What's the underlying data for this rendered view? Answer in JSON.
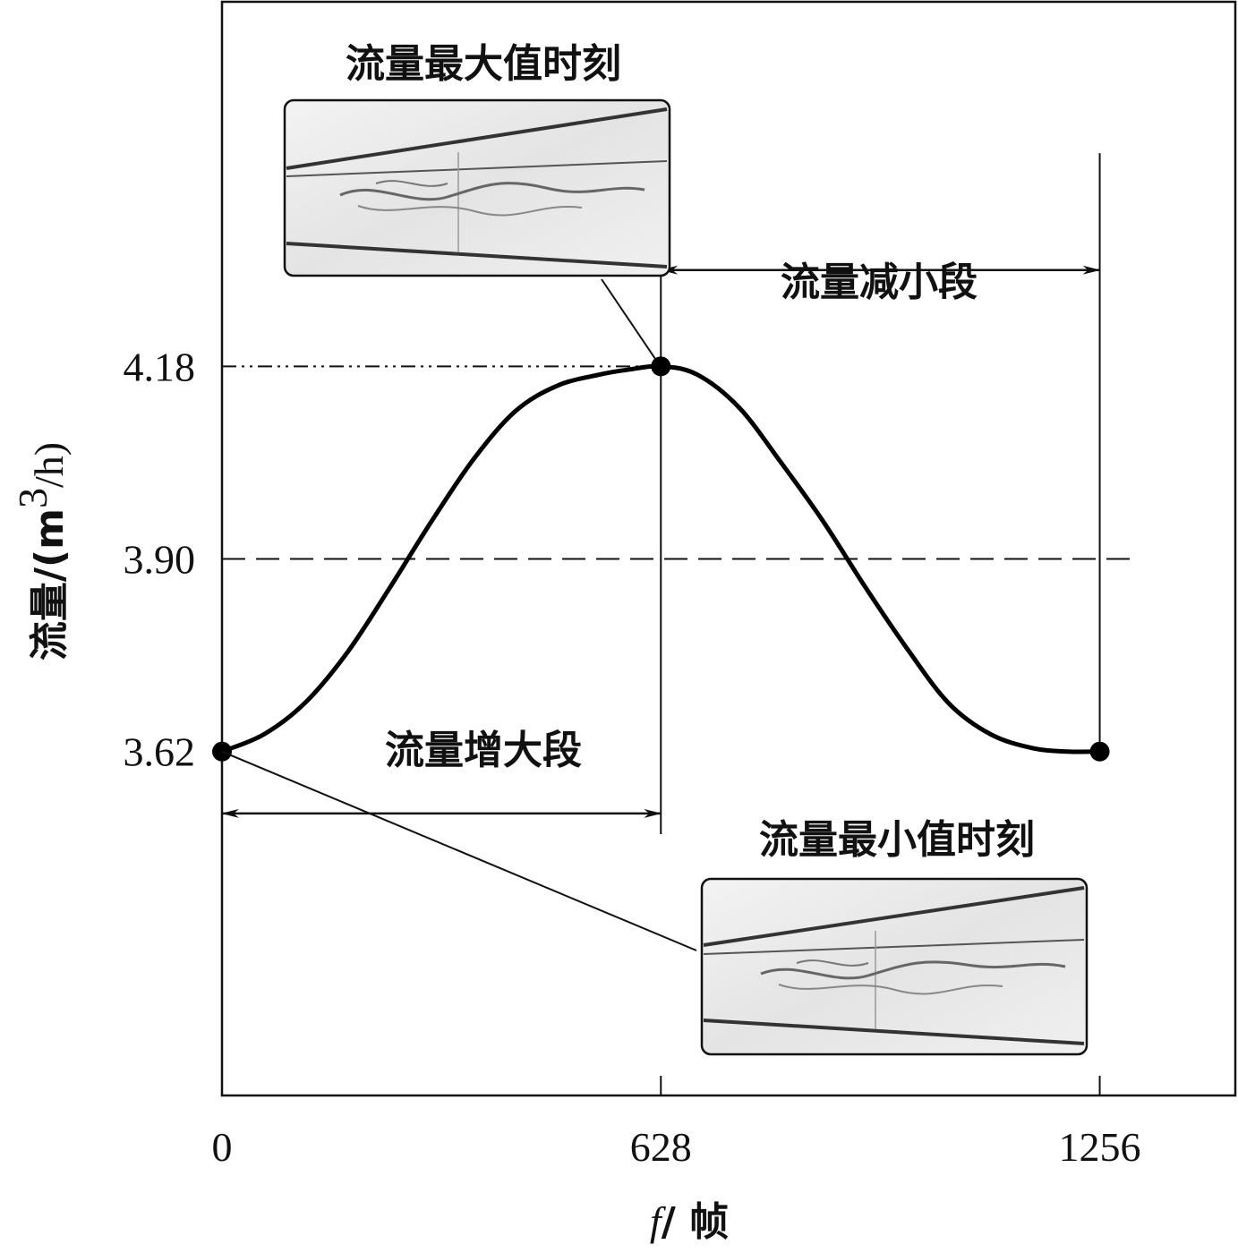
{
  "chart_data": {
    "type": "line",
    "x_axis": {
      "label_italic": "f",
      "label_rest": "/ 帧",
      "ticks": [
        0,
        628,
        1256
      ],
      "tick_labels": [
        "0",
        "628",
        "1256"
      ],
      "range": [
        0,
        1450
      ]
    },
    "y_axis": {
      "label_main": "流量/(m",
      "label_sup": "3",
      "label_end": "/h)",
      "ticks": [
        3.62,
        3.9,
        4.18
      ],
      "tick_labels": [
        "3.62",
        "3.90",
        "4.18"
      ],
      "range": [
        3.12,
        4.71
      ]
    },
    "series": [
      {
        "x": [
          0,
          60,
          120,
          180,
          240,
          300,
          360,
          420,
          480,
          540,
          580,
          628,
          680,
          740,
          800,
          860,
          920,
          980,
          1040,
          1100,
          1160,
          1210,
          1256
        ],
        "y": [
          3.62,
          3.645,
          3.692,
          3.765,
          3.858,
          3.955,
          4.045,
          4.115,
          4.152,
          4.168,
          4.175,
          4.18,
          4.168,
          4.12,
          4.04,
          3.955,
          3.86,
          3.77,
          3.69,
          3.645,
          3.625,
          3.62,
          3.62
        ]
      }
    ],
    "reference_lines": {
      "dash_dot_y": 4.18,
      "dashed_y": 3.9,
      "vertical_x": [
        628,
        1256
      ]
    },
    "key_points": [
      {
        "x": 628,
        "y": 4.18
      },
      {
        "x": 0,
        "y": 3.62
      },
      {
        "x": 1256,
        "y": 3.62
      }
    ],
    "annotations": {
      "max_title": "流量最大值时刻",
      "min_title": "流量最小值时刻",
      "increase_label": "流量增大段",
      "decrease_label": "流量减小段"
    },
    "grid": false
  }
}
